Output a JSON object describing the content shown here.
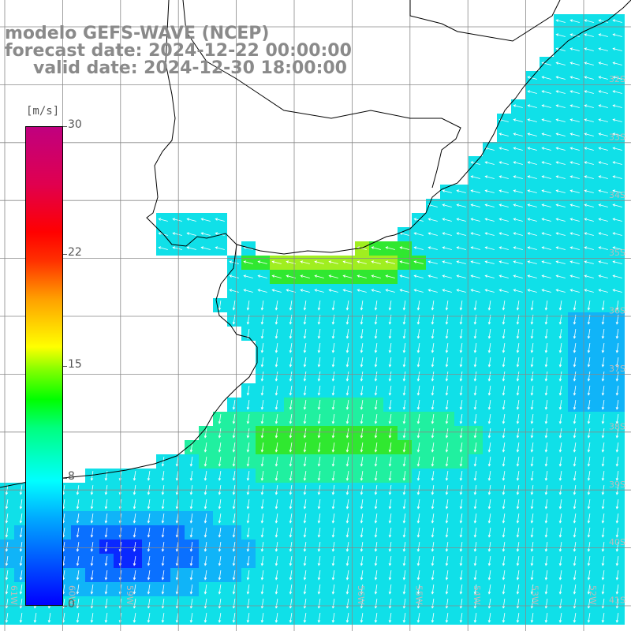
{
  "header": {
    "line1": "modelo GEFS-WAVE (NCEP)",
    "line2": "forecast date: 2024-12-22 00:00:00",
    "line3": "valid date: 2024-12-30 18:00:00"
  },
  "colorbar": {
    "unit": "[m/s]",
    "ticks": [
      "30",
      "22",
      "15",
      "8",
      "0"
    ],
    "tick_values": [
      30,
      22,
      15,
      8,
      0
    ],
    "range": [
      0,
      30
    ]
  },
  "map": {
    "lat_labels": [
      "32S",
      "33S",
      "34S",
      "35S",
      "36S",
      "37S",
      "38S",
      "39S",
      "40S",
      "41S"
    ],
    "lon_labels": [
      "61W",
      "60W",
      "59W",
      "56W",
      "55W",
      "54W",
      "53W",
      "52W",
      "51W"
    ],
    "colors": {
      "land": "#ffffff",
      "calm": "#0a3cff",
      "moderate": "#10c8f0",
      "strong": "#28e628",
      "arrow": "#ffffff",
      "grid": "#888888",
      "coast": "#000000"
    }
  }
}
